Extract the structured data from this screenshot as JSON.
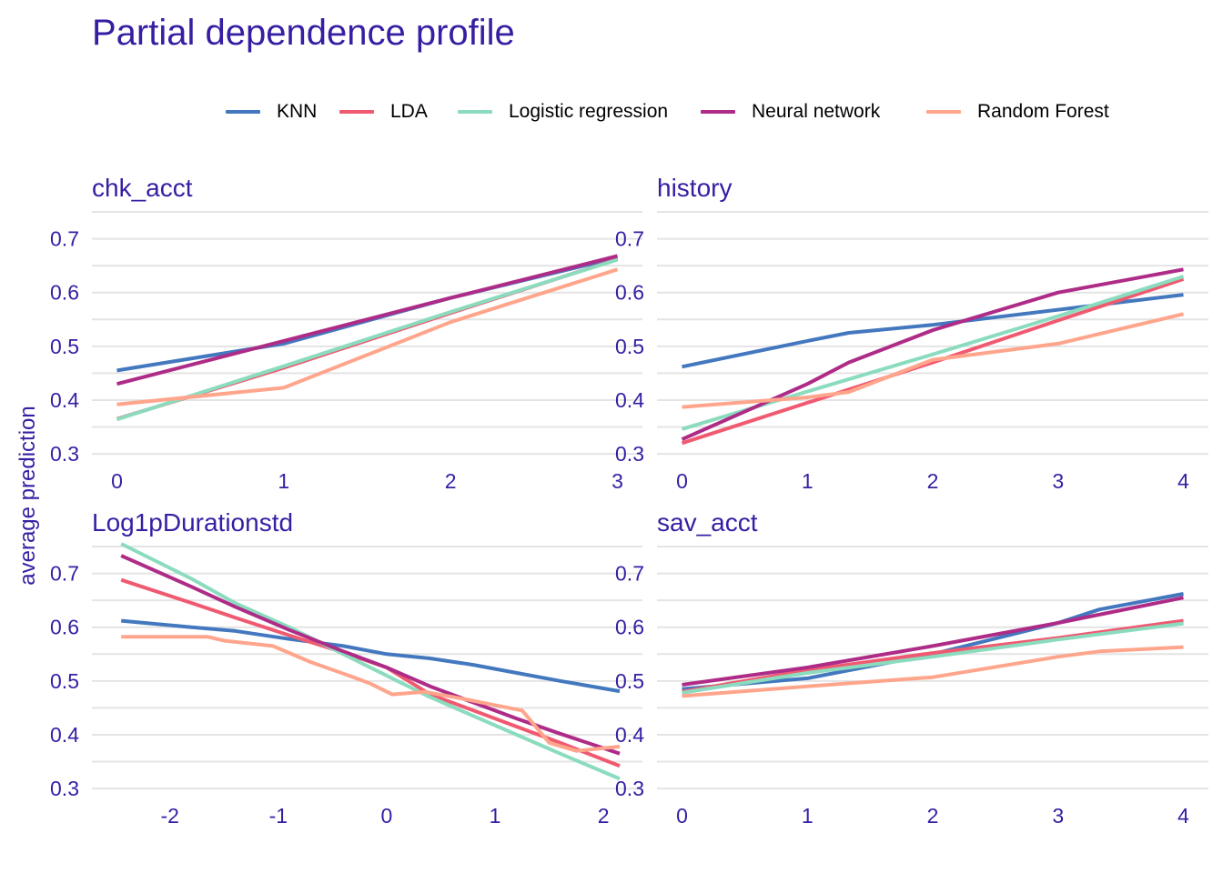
{
  "title": "Partial dependence profile",
  "ylabel": "average prediction",
  "legend": [
    {
      "name": "KNN",
      "color": "#4378bf"
    },
    {
      "name": "LDA",
      "color": "#f05a71"
    },
    {
      "name": "Logistic regression",
      "color": "#8bdcbe"
    },
    {
      "name": "Neural network",
      "color": "#ae2c87"
    },
    {
      "name": "Random Forest",
      "color": "#ffa58c"
    }
  ],
  "chart_data": [
    {
      "type": "line",
      "title": "chk_acct",
      "xticks": [
        "0",
        "1",
        "2",
        "3"
      ],
      "xlim": [
        -0.15,
        3.15
      ],
      "yticks": [
        "0.3",
        "0.4",
        "0.5",
        "0.6",
        "0.7"
      ],
      "ylim": [
        0.29,
        0.75
      ],
      "series": [
        {
          "name": "KNN",
          "x": [
            0,
            1,
            2,
            3
          ],
          "y": [
            0.455,
            0.505,
            0.59,
            0.665
          ]
        },
        {
          "name": "LDA",
          "x": [
            0,
            1,
            2,
            3
          ],
          "y": [
            0.365,
            0.46,
            0.562,
            0.662
          ]
        },
        {
          "name": "Logistic regression",
          "x": [
            0,
            1,
            2,
            3
          ],
          "y": [
            0.364,
            0.463,
            0.564,
            0.661
          ]
        },
        {
          "name": "Neural network",
          "x": [
            0,
            1,
            2,
            3
          ],
          "y": [
            0.43,
            0.51,
            0.59,
            0.668
          ]
        },
        {
          "name": "Random Forest",
          "x": [
            0,
            1,
            2,
            3
          ],
          "y": [
            0.392,
            0.423,
            0.545,
            0.643
          ]
        }
      ]
    },
    {
      "type": "line",
      "title": "history",
      "xticks": [
        "0",
        "1",
        "2",
        "3",
        "4"
      ],
      "xlim": [
        -0.2,
        4.2
      ],
      "yticks": [
        "0.3",
        "0.4",
        "0.5",
        "0.6",
        "0.7"
      ],
      "ylim": [
        0.29,
        0.75
      ],
      "series": [
        {
          "name": "KNN",
          "x": [
            0,
            1,
            1.33,
            2,
            3,
            4
          ],
          "y": [
            0.462,
            0.51,
            0.525,
            0.54,
            0.568,
            0.596
          ]
        },
        {
          "name": "LDA",
          "x": [
            0,
            1,
            2,
            3,
            4
          ],
          "y": [
            0.32,
            0.395,
            0.47,
            0.548,
            0.625
          ]
        },
        {
          "name": "Logistic regression",
          "x": [
            0,
            1,
            2,
            3,
            4
          ],
          "y": [
            0.346,
            0.416,
            0.485,
            0.556,
            0.63
          ]
        },
        {
          "name": "Neural network",
          "x": [
            0,
            1,
            1.33,
            2,
            3,
            4
          ],
          "y": [
            0.327,
            0.43,
            0.47,
            0.53,
            0.6,
            0.643
          ]
        },
        {
          "name": "Random Forest",
          "x": [
            0,
            1,
            1.33,
            2,
            3,
            4
          ],
          "y": [
            0.387,
            0.405,
            0.415,
            0.475,
            0.505,
            0.56
          ]
        }
      ]
    },
    {
      "type": "line",
      "title": "Log1pDurationstd",
      "xticks": [
        "-2",
        "-1",
        "0",
        "1",
        "2"
      ],
      "xlim": [
        -2.72,
        2.36
      ],
      "yticks": [
        "0.3",
        "0.4",
        "0.5",
        "0.6",
        "0.7"
      ],
      "ylim": [
        0.29,
        0.75
      ],
      "series": [
        {
          "name": "KNN",
          "x": [
            -2.45,
            -1.8,
            -1.4,
            -0.9,
            -0.4,
            0,
            0.4,
            0.8,
            1.2,
            1.6,
            2.15
          ],
          "y": [
            0.612,
            0.6,
            0.593,
            0.578,
            0.565,
            0.55,
            0.542,
            0.53,
            0.515,
            0.5,
            0.481
          ]
        },
        {
          "name": "LDA",
          "x": [
            -2.45,
            -1.8,
            -1.4,
            -0.9,
            -0.4,
            0,
            0.4,
            0.8,
            1.2,
            1.6,
            2.15
          ],
          "y": [
            0.688,
            0.645,
            0.618,
            0.585,
            0.553,
            0.525,
            0.475,
            0.445,
            0.415,
            0.385,
            0.342
          ]
        },
        {
          "name": "Logistic regression",
          "x": [
            -2.45,
            -1.8,
            -1.4,
            -0.9,
            -0.4,
            0,
            0.4,
            0.8,
            1.2,
            1.6,
            2.15
          ],
          "y": [
            0.755,
            0.69,
            0.645,
            0.6,
            0.55,
            0.51,
            0.47,
            0.435,
            0.4,
            0.365,
            0.318
          ]
        },
        {
          "name": "Neural network",
          "x": [
            -2.45,
            -1.8,
            -1.4,
            -0.9,
            -0.4,
            0,
            0.4,
            0.8,
            1.2,
            1.6,
            2.15
          ],
          "y": [
            0.733,
            0.675,
            0.638,
            0.595,
            0.555,
            0.525,
            0.49,
            0.46,
            0.43,
            0.402,
            0.365
          ]
        },
        {
          "name": "Random Forest",
          "x": [
            -2.45,
            -2.0,
            -1.65,
            -1.5,
            -1.05,
            -0.7,
            -0.35,
            -0.15,
            0.05,
            0.35,
            0.75,
            1.0,
            1.25,
            1.5,
            1.75,
            2.15
          ],
          "y": [
            0.582,
            0.582,
            0.582,
            0.575,
            0.565,
            0.535,
            0.51,
            0.495,
            0.475,
            0.48,
            0.465,
            0.455,
            0.445,
            0.385,
            0.37,
            0.378
          ]
        }
      ]
    },
    {
      "type": "line",
      "title": "sav_acct",
      "xticks": [
        "0",
        "1",
        "2",
        "3",
        "4"
      ],
      "xlim": [
        -0.2,
        4.2
      ],
      "yticks": [
        "0.3",
        "0.4",
        "0.5",
        "0.6",
        "0.7"
      ],
      "ylim": [
        0.29,
        0.75
      ],
      "series": [
        {
          "name": "KNN",
          "x": [
            0,
            1,
            2,
            3,
            3.33,
            4
          ],
          "y": [
            0.485,
            0.505,
            0.55,
            0.608,
            0.633,
            0.662
          ]
        },
        {
          "name": "LDA",
          "x": [
            0,
            1,
            2,
            3,
            4
          ],
          "y": [
            0.48,
            0.52,
            0.552,
            0.58,
            0.612
          ]
        },
        {
          "name": "Logistic regression",
          "x": [
            0,
            1,
            2,
            3,
            4
          ],
          "y": [
            0.478,
            0.515,
            0.545,
            0.577,
            0.607
          ]
        },
        {
          "name": "Neural network",
          "x": [
            0,
            1,
            2,
            3,
            4
          ],
          "y": [
            0.493,
            0.525,
            0.565,
            0.608,
            0.655
          ]
        },
        {
          "name": "Random Forest",
          "x": [
            0,
            1,
            2,
            3,
            3.33,
            4
          ],
          "y": [
            0.472,
            0.49,
            0.507,
            0.545,
            0.555,
            0.563
          ]
        }
      ]
    }
  ]
}
